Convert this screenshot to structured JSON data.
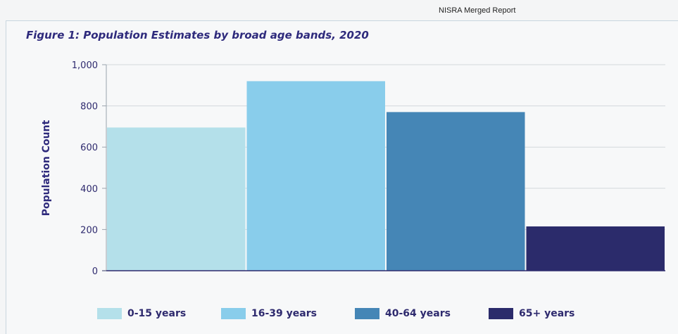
{
  "page_header": "NISRA Merged Report",
  "chart_data": {
    "type": "bar",
    "title": "Figure 1: Population Estimates by broad age bands, 2020",
    "ylabel": "Population Count",
    "xlabel": "",
    "ylim": [
      0,
      1000
    ],
    "yticks": [
      0,
      200,
      400,
      600,
      800,
      1000
    ],
    "ytick_labels": [
      "0",
      "200",
      "400",
      "600",
      "800",
      "1,000"
    ],
    "categories": [
      "0-15 years",
      "16-39 years",
      "40-64 years",
      "65+ years"
    ],
    "values": [
      695,
      920,
      770,
      215
    ],
    "colors": [
      "#b4e0ea",
      "#89cdeb",
      "#4586b6",
      "#2b2b6b"
    ],
    "grid": true,
    "legend_position": "bottom"
  }
}
